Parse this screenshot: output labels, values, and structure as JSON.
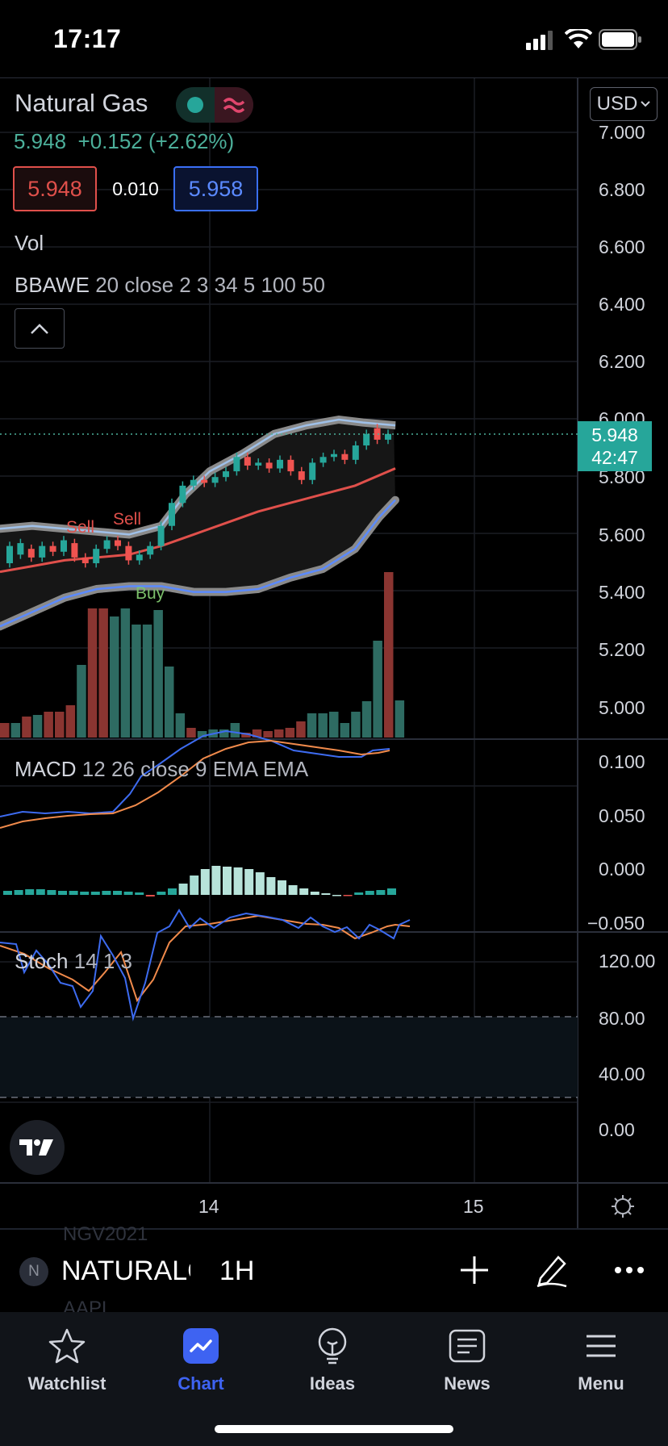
{
  "status_bar": {
    "time": "17:17"
  },
  "header": {
    "symbol_title": "Natural Gas",
    "price_change": "5.948  +0.152 (+2.62%)",
    "bid": "5.948",
    "spread": "0.010",
    "ask": "5.958",
    "currency": "USD"
  },
  "legends": {
    "volume": "Vol",
    "bbawe_name": "BBAWE",
    "bbawe_params": "20 close 2 3 34 5 100 50",
    "macd_name": "MACD",
    "macd_params": "12 26 close 9 EMA EMA",
    "stoch_name": "Stoch",
    "stoch_params": "14 1 3"
  },
  "price_axis": [
    "7.000",
    "6.800",
    "6.600",
    "6.400",
    "6.200",
    "6.000",
    "5.800",
    "5.600",
    "5.400",
    "5.200",
    "5.000"
  ],
  "last_price": {
    "price": "5.948",
    "countdown": "42:47"
  },
  "signals": {
    "sell1": "Sell",
    "sell2": "Sell",
    "buy": "Buy"
  },
  "macd_axis": [
    "0.100",
    "0.050",
    "0.000",
    "−0.050"
  ],
  "stoch_axis": [
    "120.00",
    "80.00",
    "40.00",
    "0.00"
  ],
  "time_axis": [
    "14",
    "15"
  ],
  "toolbar": {
    "symbol": "NATURALGAS",
    "interval": "1H",
    "symbol_initial": "N",
    "ghost_above": "NGV2021",
    "ghost_below": "AAPL"
  },
  "tabs": [
    {
      "label": "Watchlist",
      "icon": "star-icon"
    },
    {
      "label": "Chart",
      "icon": "chart-icon"
    },
    {
      "label": "Ideas",
      "icon": "lightbulb-icon"
    },
    {
      "label": "News",
      "icon": "newspaper-icon"
    },
    {
      "label": "Menu",
      "icon": "hamburger-icon"
    }
  ],
  "colors": {
    "up": "#26a69a",
    "down": "#ef5350",
    "accent": "#3e63f2",
    "macd_line": "#3d6bf0",
    "signal_line": "#f08a4b"
  }
}
